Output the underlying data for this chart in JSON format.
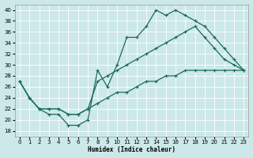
{
  "xlabel": "Humidex (Indice chaleur)",
  "bg_color": "#cce8e8",
  "line_color": "#1a6b5a",
  "xlim": [
    -0.5,
    23.5
  ],
  "ylim": [
    17,
    41
  ],
  "yticks": [
    18,
    20,
    22,
    24,
    26,
    28,
    30,
    32,
    34,
    36,
    38,
    40
  ],
  "xticks": [
    0,
    1,
    2,
    3,
    4,
    5,
    6,
    7,
    8,
    9,
    10,
    11,
    12,
    13,
    14,
    15,
    16,
    17,
    18,
    19,
    20,
    21,
    22,
    23
  ],
  "line1_x": [
    0,
    1,
    2,
    3,
    4,
    5,
    6,
    7,
    8,
    9,
    10,
    11,
    12,
    13,
    14,
    15,
    16,
    17,
    18,
    19,
    20,
    21,
    22,
    23
  ],
  "line1_y": [
    27,
    24,
    22,
    21,
    21,
    19,
    19,
    20,
    29,
    26,
    30,
    35,
    35,
    37,
    40,
    39,
    40,
    39,
    38,
    37,
    35,
    33,
    31,
    29
  ],
  "line2_x": [
    0,
    1,
    2,
    3,
    4,
    5,
    6,
    7,
    8,
    9,
    10,
    11,
    12,
    13,
    14,
    15,
    16,
    17,
    18,
    19,
    20,
    21,
    22,
    23
  ],
  "line2_y": [
    27,
    24,
    22,
    22,
    22,
    21,
    21,
    22,
    27,
    28,
    29,
    30,
    31,
    32,
    33,
    34,
    35,
    36,
    37,
    35,
    33,
    31,
    30,
    29
  ],
  "line3_x": [
    0,
    1,
    2,
    3,
    4,
    5,
    6,
    7,
    8,
    9,
    10,
    11,
    12,
    13,
    14,
    15,
    16,
    17,
    18,
    19,
    20,
    21,
    22,
    23
  ],
  "line3_y": [
    27,
    24,
    22,
    22,
    22,
    21,
    21,
    22,
    23,
    24,
    25,
    25,
    26,
    27,
    27,
    28,
    28,
    29,
    29,
    29,
    29,
    29,
    29,
    29
  ]
}
